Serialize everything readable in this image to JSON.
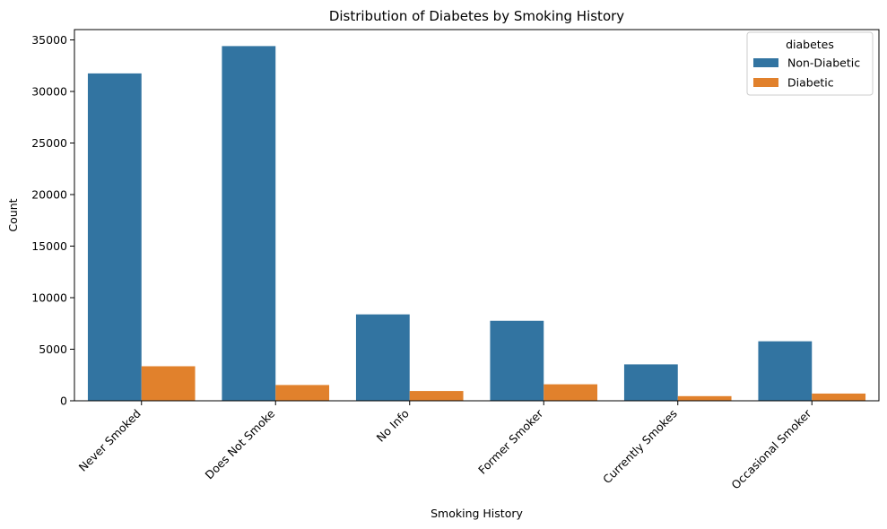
{
  "chart_data": {
    "type": "bar",
    "title": "Distribution of Diabetes by Smoking History",
    "xlabel": "Smoking History",
    "ylabel": "Count",
    "categories": [
      "Never Smoked",
      "Does Not Smoke",
      "No Info",
      "Former Smoker",
      "Currently Smokes",
      "Occasional Smoker"
    ],
    "series": [
      {
        "name": "Non-Diabetic",
        "color": "#3274a1",
        "values": [
          31750,
          34400,
          8380,
          7760,
          3530,
          5770
        ]
      },
      {
        "name": "Diabetic",
        "color": "#e1812c",
        "values": [
          3350,
          1530,
          950,
          1600,
          450,
          700
        ]
      }
    ],
    "ylim": [
      0,
      36000
    ],
    "yticks": [
      0,
      5000,
      10000,
      15000,
      20000,
      25000,
      30000,
      35000
    ],
    "legend": {
      "title": "diabetes",
      "placement": "top-right"
    },
    "grid": false
  }
}
